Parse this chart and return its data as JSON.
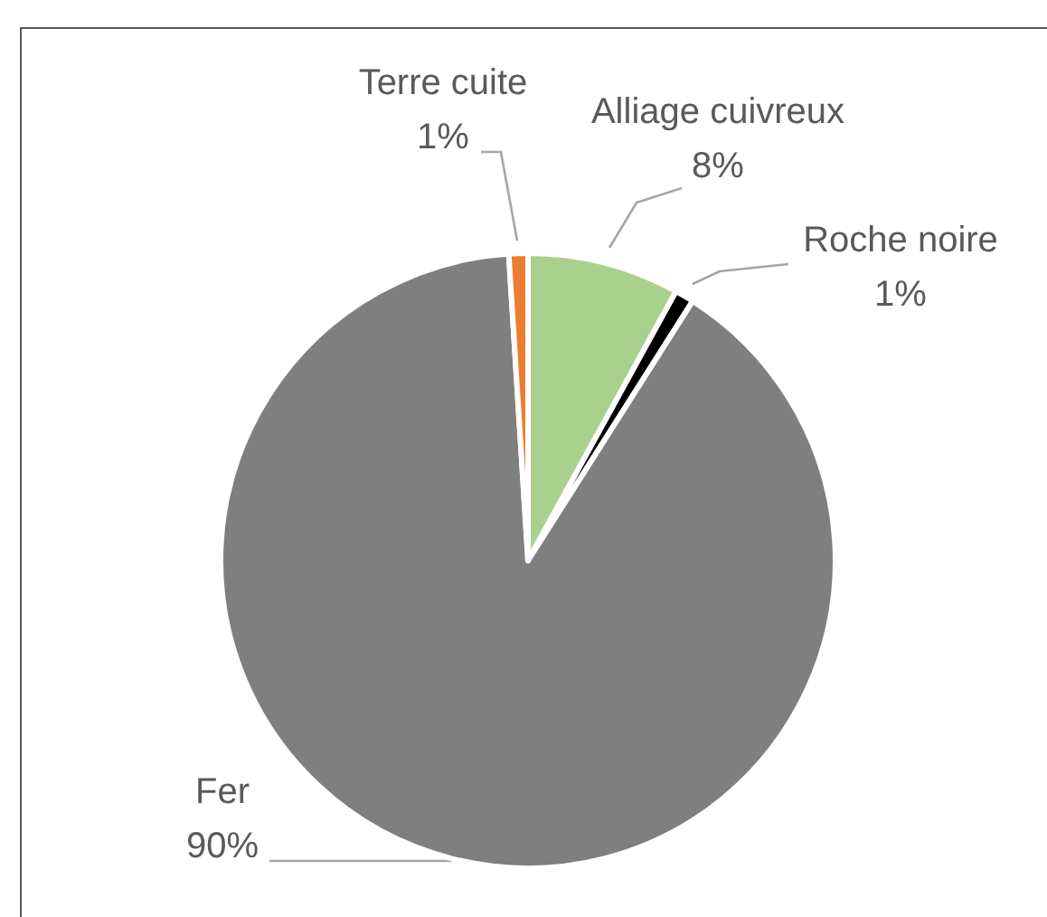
{
  "chart_data": {
    "type": "pie",
    "categories": [
      "Alliage cuivreux",
      "Roche noire",
      "Fer",
      "Terre cuite"
    ],
    "values": [
      8,
      1,
      90,
      1
    ],
    "colors": [
      "#a9d18e",
      "#000000",
      "#7f7f7f",
      "#ed7d31"
    ],
    "value_labels": [
      "8%",
      "1%",
      "90%",
      "1%"
    ]
  }
}
